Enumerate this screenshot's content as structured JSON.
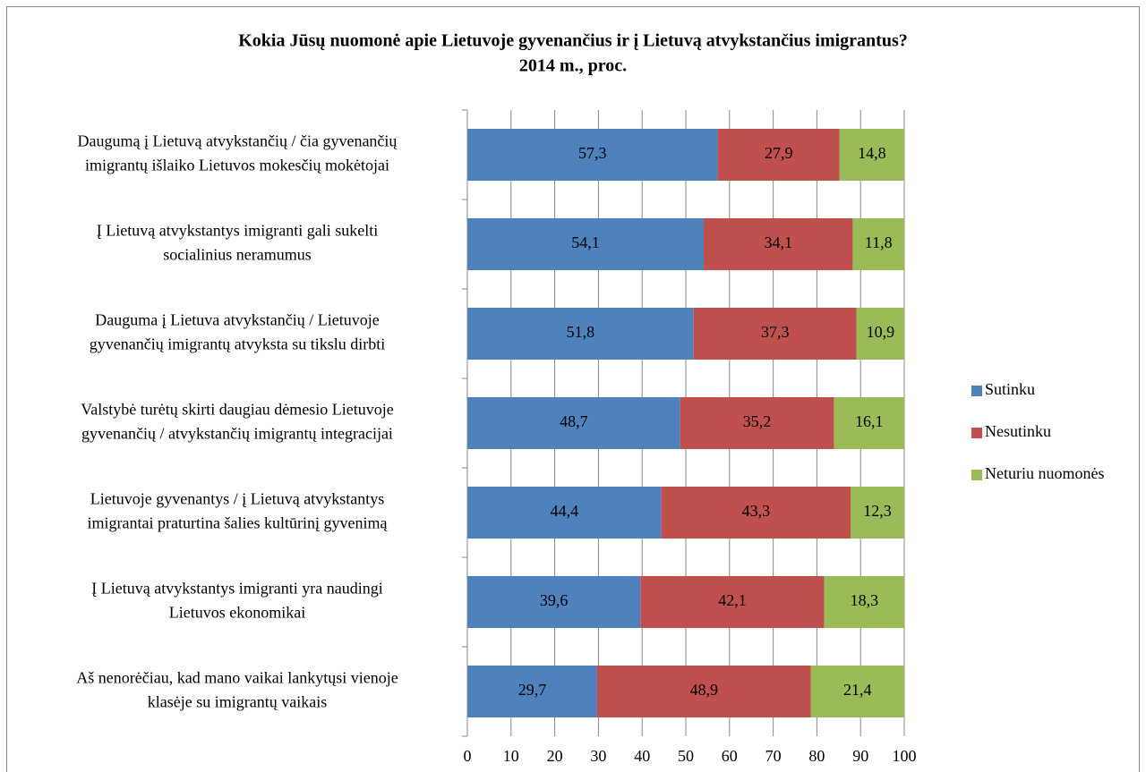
{
  "chart_data": {
    "type": "stacked_barh",
    "title": [
      "Kokia Jūsų nuomonė apie Lietuvoje gyvenančius ir į Lietuvą atvykstančius imigrantus?",
      "2014 m., proc."
    ],
    "categories": [
      [
        "Daugumą į Lietuvą atvykstančių / čia gyvenančių",
        "imigrantų išlaiko Lietuvos mokesčių mokėtojai"
      ],
      [
        "Į Lietuvą atvykstantys imigranti gali sukelti",
        "socialinius neramumus"
      ],
      [
        "Dauguma į Lietuva atvykstančių / Lietuvoje",
        "gyvenančių imigrantų atvyksta su tikslu dirbti"
      ],
      [
        "Valstybė turėtų skirti daugiau dėmesio Lietuvoje",
        "gyvenančių / atvykstančių imigrantų integracijai"
      ],
      [
        "Lietuvoje gyvenantys / į Lietuvą atvykstantys",
        "imigrantai praturtina šalies kultūrinį gyvenimą"
      ],
      [
        "Į Lietuvą atvykstantys imigranti yra naudingi",
        "Lietuvos ekonomikai"
      ],
      [
        "Aš nenorėčiau, kad mano vaikai lankytųsi vienoje",
        "klasėje su imigrantų vaikais"
      ]
    ],
    "series": [
      {
        "name": "Sutinku",
        "color": "#4f81bd",
        "values": [
          57.3,
          54.1,
          51.8,
          48.7,
          44.4,
          39.6,
          29.7
        ],
        "value_labels": [
          "57,3",
          "54,1",
          "51,8",
          "48,7",
          "44,4",
          "39,6",
          "29,7"
        ]
      },
      {
        "name": "Nesutinku",
        "color": "#c0504d",
        "values": [
          27.9,
          34.1,
          37.3,
          35.2,
          43.3,
          42.1,
          48.9
        ],
        "value_labels": [
          "27,9",
          "34,1",
          "37,3",
          "35,2",
          "43,3",
          "42,1",
          "48,9"
        ]
      },
      {
        "name": "Neturiu nuomonės",
        "color": "#9bbb59",
        "values": [
          14.8,
          11.8,
          10.9,
          16.1,
          12.3,
          18.3,
          21.4
        ],
        "value_labels": [
          "14,8",
          "11,8",
          "10,9",
          "16,1",
          "12,3",
          "18,3",
          "21,4"
        ]
      }
    ],
    "xlim": [
      0,
      100
    ],
    "xticks": [
      0,
      10,
      20,
      30,
      40,
      50,
      60,
      70,
      80,
      90,
      100
    ],
    "grid": true,
    "legend": "right"
  }
}
